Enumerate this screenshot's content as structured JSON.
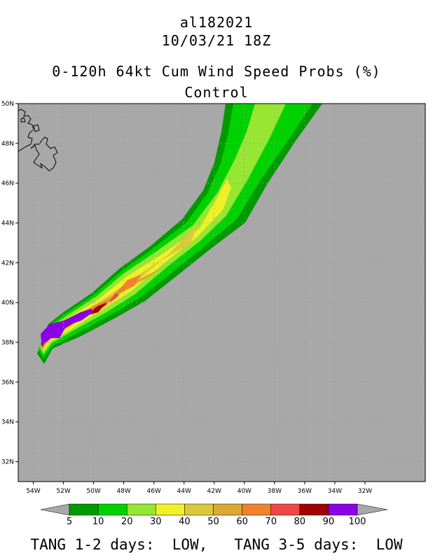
{
  "header": {
    "storm_id": "al182021",
    "issue_time": "10/03/21 18Z",
    "product": "0-120h 64kt Cum Wind Speed Probs (%)",
    "run": "Control"
  },
  "map": {
    "background_color": "#a8a8a8",
    "lon_range": [
      -55,
      -28
    ],
    "lat_range": [
      31,
      50
    ],
    "lon_ticks": [
      "54W",
      "52W",
      "50W",
      "48W",
      "46W",
      "44W",
      "42W",
      "40W",
      "38W",
      "36W",
      "34W",
      "32W"
    ],
    "lat_ticks": [
      "32N",
      "34N",
      "36N",
      "38N",
      "40N",
      "42N",
      "44N",
      "46N",
      "48N",
      "50N"
    ]
  },
  "probability_bands": [
    {
      "threshold": 5,
      "color": "#009a00"
    },
    {
      "threshold": 10,
      "color": "#00d200"
    },
    {
      "threshold": 20,
      "color": "#96e632"
    },
    {
      "threshold": 30,
      "color": "#f0f028"
    },
    {
      "threshold": 40,
      "color": "#dcc83c"
    },
    {
      "threshold": 50,
      "color": "#dca832"
    },
    {
      "threshold": 60,
      "color": "#f0822e"
    },
    {
      "threshold": 70,
      "color": "#f04646"
    },
    {
      "threshold": 80,
      "color": "#a00000"
    },
    {
      "threshold": 90,
      "color": "#8c00e6"
    }
  ],
  "colorbar": {
    "labels": [
      "5",
      "10",
      "20",
      "30",
      "40",
      "50",
      "60",
      "70",
      "80",
      "90",
      "100"
    ],
    "colors": [
      "#009a00",
      "#00d200",
      "#96e632",
      "#f0f028",
      "#dcc83c",
      "#dca832",
      "#f0822e",
      "#f04646",
      "#a00000",
      "#8c00e6"
    ]
  },
  "footer": {
    "text": "TANG 1-2 days:  LOW,   TANG 3-5 days:  LOW"
  }
}
